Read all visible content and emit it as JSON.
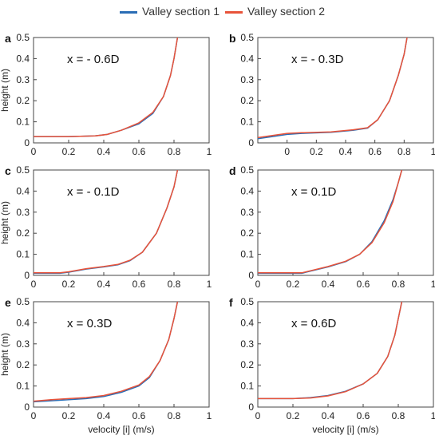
{
  "legend": {
    "series1": "Valley section 1",
    "series2": "Valley section 2",
    "color1": "#2a6db5",
    "color2": "#e8533a"
  },
  "chart_data": [
    {
      "panel": "a",
      "type": "line",
      "annotation": "x = - 0.6D",
      "ylabel": "height (m)",
      "xlabel": "",
      "xlim": [
        0,
        1
      ],
      "ylim": [
        0,
        0.5
      ],
      "xticks": [
        "0",
        "0.2",
        "0.4",
        "0.6",
        "0.8",
        "1"
      ],
      "yticks": [
        "0",
        "0.1",
        "0.2",
        "0.3",
        "0.4",
        "0.5"
      ],
      "series": [
        {
          "name": "Valley section 1",
          "x": [
            0,
            0.2,
            0.35,
            0.42,
            0.5,
            0.6,
            0.68,
            0.74,
            0.78,
            0.8,
            0.82
          ],
          "y": [
            0.03,
            0.03,
            0.033,
            0.04,
            0.06,
            0.09,
            0.14,
            0.22,
            0.32,
            0.4,
            0.5
          ]
        },
        {
          "name": "Valley section 2",
          "x": [
            0,
            0.2,
            0.35,
            0.42,
            0.5,
            0.6,
            0.68,
            0.74,
            0.78,
            0.8,
            0.82
          ],
          "y": [
            0.03,
            0.03,
            0.033,
            0.04,
            0.06,
            0.095,
            0.145,
            0.22,
            0.32,
            0.4,
            0.5
          ]
        }
      ]
    },
    {
      "panel": "b",
      "type": "line",
      "annotation": "x = - 0.3D",
      "ylabel": "",
      "xlabel": "",
      "xlim": [
        -0.2,
        1
      ],
      "ylim": [
        0,
        0.5
      ],
      "xticks": [
        "0",
        "0.2",
        "0.4",
        "0.6",
        "0.8",
        "1"
      ],
      "yticks": [
        "0",
        "0.1",
        "0.2",
        "0.3",
        "0.4",
        "0.5"
      ],
      "series": [
        {
          "name": "Valley section 1",
          "x": [
            -0.2,
            -0.1,
            0,
            0.1,
            0.3,
            0.45,
            0.55,
            0.62,
            0.7,
            0.76,
            0.8,
            0.82
          ],
          "y": [
            0.02,
            0.03,
            0.04,
            0.045,
            0.05,
            0.06,
            0.07,
            0.11,
            0.2,
            0.32,
            0.42,
            0.5
          ]
        },
        {
          "name": "Valley section 2",
          "x": [
            -0.2,
            -0.1,
            0,
            0.1,
            0.3,
            0.45,
            0.55,
            0.62,
            0.7,
            0.76,
            0.8,
            0.82
          ],
          "y": [
            0.025,
            0.035,
            0.045,
            0.048,
            0.052,
            0.062,
            0.072,
            0.11,
            0.2,
            0.32,
            0.42,
            0.5
          ]
        }
      ]
    },
    {
      "panel": "c",
      "type": "line",
      "annotation": "x = - 0.1D",
      "ylabel": "height (m)",
      "xlabel": "",
      "xlim": [
        0,
        1
      ],
      "ylim": [
        0,
        0.5
      ],
      "xticks": [
        "0",
        "0.2",
        "0.4",
        "0.6",
        "0.8",
        "1"
      ],
      "yticks": [
        "0",
        "0.1",
        "0.2",
        "0.3",
        "0.4",
        "0.5"
      ],
      "series": [
        {
          "name": "Valley section 1",
          "x": [
            0,
            0.15,
            0.2,
            0.3,
            0.4,
            0.48,
            0.55,
            0.62,
            0.7,
            0.76,
            0.8,
            0.82
          ],
          "y": [
            0.01,
            0.01,
            0.015,
            0.03,
            0.04,
            0.05,
            0.07,
            0.11,
            0.2,
            0.32,
            0.42,
            0.5
          ]
        },
        {
          "name": "Valley section 2",
          "x": [
            0,
            0.15,
            0.2,
            0.3,
            0.4,
            0.48,
            0.55,
            0.62,
            0.7,
            0.76,
            0.8,
            0.82
          ],
          "y": [
            0.012,
            0.012,
            0.017,
            0.032,
            0.042,
            0.052,
            0.072,
            0.11,
            0.2,
            0.32,
            0.42,
            0.5
          ]
        }
      ]
    },
    {
      "panel": "d",
      "type": "line",
      "annotation": "x = 0.1D",
      "ylabel": "",
      "xlabel": "",
      "xlim": [
        0,
        1
      ],
      "ylim": [
        0,
        0.5
      ],
      "xticks": [
        "0",
        "0.2",
        "0.4",
        "0.6",
        "0.8",
        "1"
      ],
      "yticks": [
        "0",
        "0.1",
        "0.2",
        "0.3",
        "0.4",
        "0.5"
      ],
      "series": [
        {
          "name": "Valley section 1",
          "x": [
            0,
            0.25,
            0.3,
            0.4,
            0.5,
            0.58,
            0.65,
            0.72,
            0.77,
            0.8,
            0.82
          ],
          "y": [
            0.01,
            0.01,
            0.02,
            0.04,
            0.065,
            0.1,
            0.16,
            0.26,
            0.36,
            0.44,
            0.5
          ]
        },
        {
          "name": "Valley section 2",
          "x": [
            0,
            0.25,
            0.3,
            0.4,
            0.5,
            0.58,
            0.65,
            0.72,
            0.77,
            0.8,
            0.82
          ],
          "y": [
            0.012,
            0.012,
            0.022,
            0.042,
            0.067,
            0.1,
            0.155,
            0.25,
            0.35,
            0.44,
            0.5
          ]
        }
      ]
    },
    {
      "panel": "e",
      "type": "line",
      "annotation": "x = 0.3D",
      "ylabel": "height (m)",
      "xlabel": "velocity [i] (m/s)",
      "xlim": [
        0,
        1
      ],
      "ylim": [
        0,
        0.5
      ],
      "xticks": [
        "0",
        "0.2",
        "0.4",
        "0.6",
        "0.8",
        "1"
      ],
      "yticks": [
        "0",
        "0.1",
        "0.2",
        "0.3",
        "0.4",
        "0.5"
      ],
      "series": [
        {
          "name": "Valley section 1",
          "x": [
            0,
            0.1,
            0.2,
            0.3,
            0.4,
            0.5,
            0.6,
            0.66,
            0.72,
            0.77,
            0.8,
            0.82
          ],
          "y": [
            0.025,
            0.03,
            0.035,
            0.04,
            0.05,
            0.07,
            0.1,
            0.14,
            0.22,
            0.32,
            0.42,
            0.5
          ]
        },
        {
          "name": "Valley section 2",
          "x": [
            0,
            0.1,
            0.2,
            0.3,
            0.4,
            0.5,
            0.6,
            0.66,
            0.72,
            0.77,
            0.8,
            0.82
          ],
          "y": [
            0.028,
            0.035,
            0.04,
            0.045,
            0.055,
            0.075,
            0.105,
            0.145,
            0.22,
            0.32,
            0.42,
            0.5
          ]
        }
      ]
    },
    {
      "panel": "f",
      "type": "line",
      "annotation": "x = 0.6D",
      "ylabel": "",
      "xlabel": "velocity [i] (m/s)",
      "xlim": [
        0,
        1
      ],
      "ylim": [
        0,
        0.5
      ],
      "xticks": [
        "0",
        "0.2",
        "0.4",
        "0.6",
        "0.8",
        "1"
      ],
      "yticks": [
        "0",
        "0.1",
        "0.2",
        "0.3",
        "0.4",
        "0.5"
      ],
      "series": [
        {
          "name": "Valley section 1",
          "x": [
            0,
            0.2,
            0.3,
            0.4,
            0.5,
            0.6,
            0.68,
            0.74,
            0.78,
            0.8,
            0.82
          ],
          "y": [
            0.04,
            0.04,
            0.045,
            0.055,
            0.075,
            0.11,
            0.16,
            0.24,
            0.34,
            0.42,
            0.5
          ]
        },
        {
          "name": "Valley section 2",
          "x": [
            0,
            0.2,
            0.3,
            0.4,
            0.5,
            0.6,
            0.68,
            0.74,
            0.78,
            0.8,
            0.82
          ],
          "y": [
            0.04,
            0.04,
            0.043,
            0.053,
            0.073,
            0.11,
            0.16,
            0.24,
            0.34,
            0.42,
            0.5
          ]
        }
      ]
    }
  ]
}
